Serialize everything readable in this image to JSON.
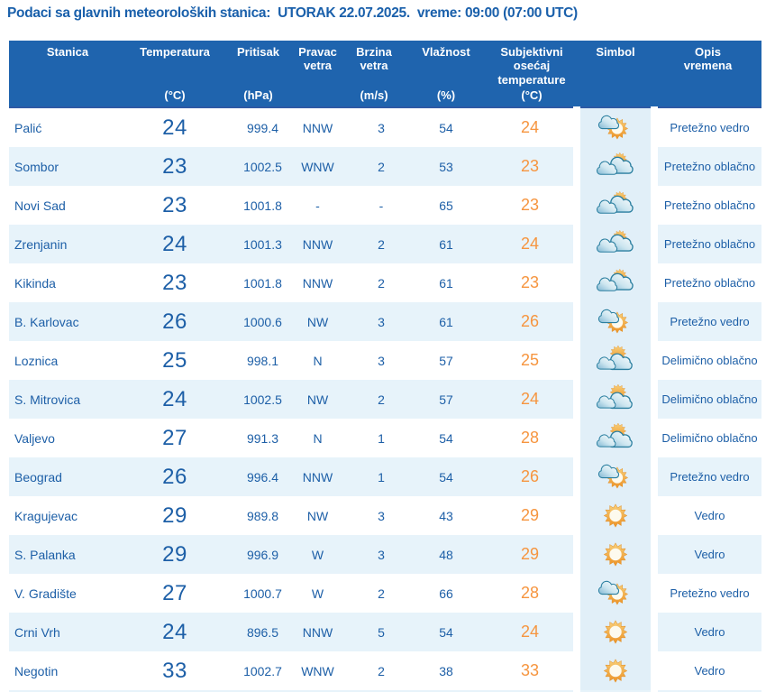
{
  "title": "Podaci sa glavnih meteoroloških stanica:  UTORAK 22.07.2025.  vreme: 09:00 (07:00 UTC)",
  "colors": {
    "title_text": "#1a60ab",
    "header_bg": "#1f64ae",
    "header_text": "#ffffff",
    "data_text_blue": "#1d5fa7",
    "feels_like_orange": "#f6953f",
    "row_alt_bg": "#e7f3fa",
    "symbol_cell_bg": "#e1eff8",
    "sun_orange": "#ec9226",
    "cloud_teal": "#7fb6d2"
  },
  "icon_names": {
    "vedro": "clear-sky-sun-icon",
    "pretezno-vedro": "sun-with-small-cloud-icon",
    "delimicno-oblacno": "sun-behind-clouds-icon",
    "pretezno-oblacno": "clouds-with-sun-peek-icon"
  },
  "table": {
    "columns": [
      {
        "id": "station",
        "label": "Stanica",
        "unit": ""
      },
      {
        "id": "temp",
        "label": "Temperatura",
        "unit": "(°C)"
      },
      {
        "id": "press",
        "label": "Pritisak",
        "unit": "(hPa)"
      },
      {
        "id": "dir",
        "label": "Pravac\nvetra",
        "unit": ""
      },
      {
        "id": "speed",
        "label": "Brzina\nvetra",
        "unit": "(m/s)"
      },
      {
        "id": "hum",
        "label": "Vlažnost",
        "unit": "(%)"
      },
      {
        "id": "feels",
        "label": "Subjektivni\nosećaj\ntemperature",
        "unit": "(°C)"
      },
      {
        "id": "symbol",
        "label": "Simbol",
        "unit": ""
      },
      {
        "id": "desc",
        "label": "Opis\nvremena",
        "unit": ""
      }
    ],
    "rows": [
      {
        "station": "Palić",
        "temp": "24",
        "pressure": "999.4",
        "wind_dir": "NNW",
        "wind_speed": "3",
        "humidity": "54",
        "feels_like": "24",
        "symbol": "pretezno-vedro",
        "description": "Pretežno vedro"
      },
      {
        "station": "Sombor",
        "temp": "23",
        "pressure": "1002.5",
        "wind_dir": "WNW",
        "wind_speed": "2",
        "humidity": "53",
        "feels_like": "23",
        "symbol": "pretezno-oblacno",
        "description": "Pretežno oblačno"
      },
      {
        "station": "Novi Sad",
        "temp": "23",
        "pressure": "1001.8",
        "wind_dir": "-",
        "wind_speed": "-",
        "humidity": "65",
        "feels_like": "23",
        "symbol": "pretezno-oblacno",
        "description": "Pretežno oblačno"
      },
      {
        "station": "Zrenjanin",
        "temp": "24",
        "pressure": "1001.3",
        "wind_dir": "NNW",
        "wind_speed": "2",
        "humidity": "61",
        "feels_like": "24",
        "symbol": "pretezno-oblacno",
        "description": "Pretežno oblačno"
      },
      {
        "station": "Kikinda",
        "temp": "23",
        "pressure": "1001.8",
        "wind_dir": "NNW",
        "wind_speed": "2",
        "humidity": "61",
        "feels_like": "23",
        "symbol": "pretezno-oblacno",
        "description": "Pretežno oblačno"
      },
      {
        "station": "B. Karlovac",
        "temp": "26",
        "pressure": "1000.6",
        "wind_dir": "NW",
        "wind_speed": "3",
        "humidity": "61",
        "feels_like": "26",
        "symbol": "pretezno-vedro",
        "description": "Pretežno vedro"
      },
      {
        "station": "Loznica",
        "temp": "25",
        "pressure": "998.1",
        "wind_dir": "N",
        "wind_speed": "3",
        "humidity": "57",
        "feels_like": "25",
        "symbol": "delimicno-oblacno",
        "description": "Delimično oblačno"
      },
      {
        "station": "S. Mitrovica",
        "temp": "24",
        "pressure": "1002.5",
        "wind_dir": "NW",
        "wind_speed": "2",
        "humidity": "57",
        "feels_like": "24",
        "symbol": "delimicno-oblacno",
        "description": "Delimično oblačno"
      },
      {
        "station": "Valjevo",
        "temp": "27",
        "pressure": "991.3",
        "wind_dir": "N",
        "wind_speed": "1",
        "humidity": "54",
        "feels_like": "28",
        "symbol": "delimicno-oblacno",
        "description": "Delimično oblačno"
      },
      {
        "station": "Beograd",
        "temp": "26",
        "pressure": "996.4",
        "wind_dir": "NNW",
        "wind_speed": "1",
        "humidity": "54",
        "feels_like": "26",
        "symbol": "pretezno-vedro",
        "description": "Pretežno vedro"
      },
      {
        "station": "Kragujevac",
        "temp": "29",
        "pressure": "989.8",
        "wind_dir": "NW",
        "wind_speed": "3",
        "humidity": "43",
        "feels_like": "29",
        "symbol": "vedro",
        "description": "Vedro"
      },
      {
        "station": "S. Palanka",
        "temp": "29",
        "pressure": "996.9",
        "wind_dir": "W",
        "wind_speed": "3",
        "humidity": "48",
        "feels_like": "29",
        "symbol": "vedro",
        "description": "Vedro"
      },
      {
        "station": "V. Gradište",
        "temp": "27",
        "pressure": "1000.7",
        "wind_dir": "W",
        "wind_speed": "2",
        "humidity": "66",
        "feels_like": "28",
        "symbol": "pretezno-vedro",
        "description": "Pretežno vedro"
      },
      {
        "station": "Crni Vrh",
        "temp": "24",
        "pressure": "896.5",
        "wind_dir": "NNW",
        "wind_speed": "5",
        "humidity": "54",
        "feels_like": "24",
        "symbol": "vedro",
        "description": "Vedro"
      },
      {
        "station": "Negotin",
        "temp": "33",
        "pressure": "1002.7",
        "wind_dir": "WNW",
        "wind_speed": "2",
        "humidity": "38",
        "feels_like": "33",
        "symbol": "vedro",
        "description": "Vedro"
      }
    ]
  }
}
